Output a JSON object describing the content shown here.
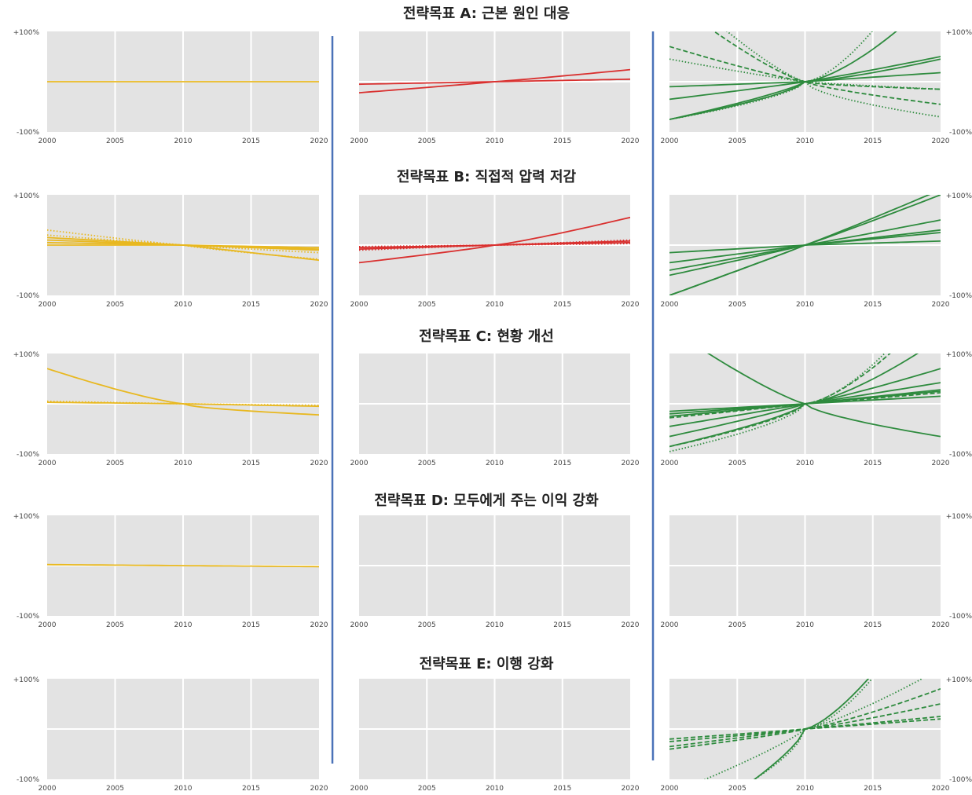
{
  "colors": {
    "yellow": "#E8B820",
    "red": "#D9302F",
    "green": "#2E8B3E",
    "panel_bg": "#E3E3E3",
    "grid": "#FFFFFF",
    "divider": "#4A72B8"
  },
  "x_ticks": [
    "2000",
    "2005",
    "2010",
    "2015",
    "2020"
  ],
  "y_top_label": "+100%",
  "y_bottom_label": "-100%",
  "rows": [
    {
      "title": "전략목표 A: 근본 원인 대응"
    },
    {
      "title": "전략목표 B: 직접적 압력 저감"
    },
    {
      "title": "전략목표 C: 현황 개선"
    },
    {
      "title": "전략목표 D: 모두에게 주는 이익 강화"
    },
    {
      "title": "전략목표 E: 이행 강화"
    }
  ],
  "chart_data": [
    {
      "type": "line",
      "row": "A",
      "column": 1,
      "color": "yellow",
      "x": [
        2000,
        2020
      ],
      "ylim": [
        -100,
        100
      ],
      "series": [
        {
          "style": "solid",
          "y_start": 0,
          "y_end": 0,
          "curve": 0
        }
      ]
    },
    {
      "type": "line",
      "row": "A",
      "column": 2,
      "color": "red",
      "x": [
        2000,
        2020
      ],
      "ylim": [
        -100,
        100
      ],
      "series": [
        {
          "style": "solid",
          "y_start": -5,
          "y_end": 5,
          "curve": 0
        },
        {
          "style": "solid",
          "y_start": -22,
          "y_end": 24,
          "curve": 0.1
        }
      ]
    },
    {
      "type": "line",
      "row": "A",
      "column": 3,
      "color": "green",
      "x": [
        2000,
        2020
      ],
      "ylim": [
        -100,
        100
      ],
      "series": [
        {
          "style": "solid",
          "y_start": -35,
          "y_end": 50,
          "curve": 0.1
        },
        {
          "style": "solid",
          "y_start": -75,
          "y_end": 180,
          "curve": 0.6
        },
        {
          "style": "solid",
          "y_start": -75,
          "y_end": 45,
          "curve": 0.4
        },
        {
          "style": "solid",
          "y_start": -10,
          "y_end": 18,
          "curve": 0
        },
        {
          "style": "dashed",
          "y_start": 70,
          "y_end": -45,
          "curve": -0.3
        },
        {
          "style": "dashed",
          "y_start": 165,
          "y_end": -15,
          "curve": -0.5
        },
        {
          "style": "dotted",
          "y_start": -75,
          "y_end": 300,
          "curve": 0.7
        },
        {
          "style": "dotted",
          "y_start": 200,
          "y_end": -70,
          "curve": -0.5
        },
        {
          "style": "dotted",
          "y_start": 45,
          "y_end": -15,
          "curve": -0.2
        }
      ]
    },
    {
      "type": "line",
      "row": "B",
      "column": 1,
      "color": "yellow",
      "x": [
        2000,
        2020
      ],
      "ylim": [
        -100,
        100
      ],
      "series": [
        {
          "style": "solid",
          "y_start": 15,
          "y_end": -30,
          "curve": 0
        },
        {
          "style": "solid",
          "y_start": 10,
          "y_end": -10,
          "curve": 0
        },
        {
          "style": "solid",
          "y_start": 5,
          "y_end": -5,
          "curve": 0
        },
        {
          "style": "solid",
          "y_start": 0,
          "y_end": -8,
          "curve": 0
        },
        {
          "style": "dotted",
          "y_start": 30,
          "y_end": -28,
          "curve": -0.2
        },
        {
          "style": "dotted",
          "y_start": 20,
          "y_end": -15,
          "curve": -0.1
        }
      ]
    },
    {
      "type": "line",
      "row": "B",
      "column": 2,
      "color": "red",
      "x": [
        2000,
        2020
      ],
      "ylim": [
        -100,
        100
      ],
      "series": [
        {
          "style": "solid",
          "y_start": -35,
          "y_end": 55,
          "curve": 0.2
        },
        {
          "style": "solid",
          "y_start": -5,
          "y_end": 8,
          "curve": 0
        },
        {
          "style": "solid",
          "y_start": -8,
          "y_end": 5,
          "curve": 0
        },
        {
          "style": "dotted",
          "y_start": -10,
          "y_end": 10,
          "curve": 0
        },
        {
          "style": "dotted",
          "y_start": -3,
          "y_end": 3,
          "curve": 0
        }
      ]
    },
    {
      "type": "line",
      "row": "B",
      "column": 3,
      "color": "green",
      "x": [
        2000,
        2020
      ],
      "ylim": [
        -100,
        100
      ],
      "series": [
        {
          "style": "solid",
          "y_start": -100,
          "y_end": 110,
          "curve": 0.05
        },
        {
          "style": "solid",
          "y_start": -35,
          "y_end": 50,
          "curve": 0.05
        },
        {
          "style": "solid",
          "y_start": -50,
          "y_end": 30,
          "curve": 0.05
        },
        {
          "style": "solid",
          "y_start": -60,
          "y_end": 25,
          "curve": 0.05
        },
        {
          "style": "solid",
          "y_start": -15,
          "y_end": 8,
          "curve": 0
        },
        {
          "style": "solid",
          "y_start": -100,
          "y_end": 100,
          "curve": 0.05
        }
      ]
    },
    {
      "type": "line",
      "row": "C",
      "column": 1,
      "color": "yellow",
      "x": [
        2000,
        2020
      ],
      "ylim": [
        -100,
        100
      ],
      "series": [
        {
          "style": "solid",
          "y_start": 70,
          "y_end": -22,
          "curve": -0.5
        },
        {
          "style": "solid",
          "y_start": 3,
          "y_end": -5,
          "curve": 0
        },
        {
          "style": "dotted",
          "y_start": 5,
          "y_end": -3,
          "curve": 0
        }
      ]
    },
    {
      "type": "line",
      "row": "C",
      "column": 2,
      "color": "red",
      "x": [
        2000,
        2020
      ],
      "ylim": [
        -100,
        100
      ],
      "series": []
    },
    {
      "type": "line",
      "row": "C",
      "column": 3,
      "color": "green",
      "x": [
        2000,
        2020
      ],
      "ylim": [
        -100,
        100
      ],
      "series": [
        {
          "style": "solid",
          "y_start": 150,
          "y_end": -65,
          "curve": -0.4
        },
        {
          "style": "solid",
          "y_start": -85,
          "y_end": 130,
          "curve": 0.5
        },
        {
          "style": "solid",
          "y_start": -45,
          "y_end": 42,
          "curve": 0.05
        },
        {
          "style": "solid",
          "y_start": -25,
          "y_end": 28,
          "curve": 0
        },
        {
          "style": "solid",
          "y_start": -15,
          "y_end": 15,
          "curve": 0
        },
        {
          "style": "solid",
          "y_start": -20,
          "y_end": 25,
          "curve": 0
        },
        {
          "style": "solid",
          "y_start": -65,
          "y_end": 70,
          "curve": 0.2
        },
        {
          "style": "dashed",
          "y_start": -85,
          "y_end": 200,
          "curve": 0.6
        },
        {
          "style": "dashed",
          "y_start": -28,
          "y_end": 22,
          "curve": 0.05
        },
        {
          "style": "dotted",
          "y_start": -95,
          "y_end": 230,
          "curve": 0.7
        }
      ]
    },
    {
      "type": "line",
      "row": "D",
      "column": 1,
      "color": "yellow",
      "x": [
        2000,
        2020
      ],
      "ylim": [
        -100,
        100
      ],
      "series": [
        {
          "style": "solid",
          "y_start": 2,
          "y_end": -2,
          "curve": 0
        }
      ]
    },
    {
      "type": "line",
      "row": "D",
      "column": 2,
      "color": "red",
      "x": [
        2000,
        2020
      ],
      "ylim": [
        -100,
        100
      ],
      "series": []
    },
    {
      "type": "line",
      "row": "D",
      "column": 3,
      "color": "green",
      "x": [
        2000,
        2020
      ],
      "ylim": [
        -100,
        100
      ],
      "series": []
    },
    {
      "type": "line",
      "row": "E",
      "column": 1,
      "color": "yellow",
      "x": [
        2000,
        2020
      ],
      "ylim": [
        -100,
        100
      ],
      "series": []
    },
    {
      "type": "line",
      "row": "E",
      "column": 2,
      "color": "red",
      "x": [
        2000,
        2020
      ],
      "ylim": [
        -100,
        100
      ],
      "series": []
    },
    {
      "type": "line",
      "row": "E",
      "column": 3,
      "color": "green",
      "x": [
        2000,
        2020
      ],
      "ylim": [
        -100,
        100
      ],
      "series": [
        {
          "style": "solid",
          "y_start": -210,
          "y_end": 290,
          "curve": 0.5
        },
        {
          "style": "dotted",
          "y_start": -190,
          "y_end": 300,
          "curve": 0.7
        },
        {
          "style": "dotted",
          "y_start": -130,
          "y_end": 120,
          "curve": 0.3
        },
        {
          "style": "dashed",
          "y_start": -40,
          "y_end": 80,
          "curve": 0.3
        },
        {
          "style": "dashed",
          "y_start": -25,
          "y_end": 50,
          "curve": 0.2
        },
        {
          "style": "dashed",
          "y_start": -20,
          "y_end": 20,
          "curve": 0.05
        },
        {
          "style": "dashed",
          "y_start": -35,
          "y_end": 25,
          "curve": 0.05
        }
      ]
    }
  ]
}
